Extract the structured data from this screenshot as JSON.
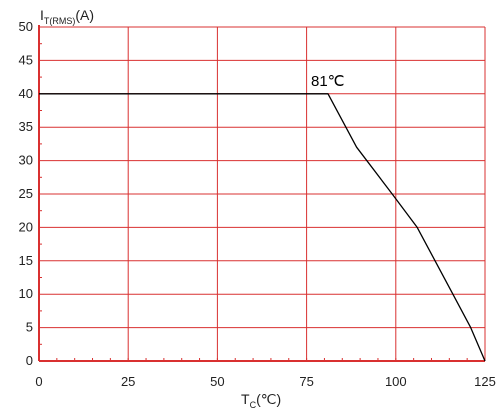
{
  "chart_data": {
    "type": "line",
    "xlabel": {
      "main": "T",
      "sub": "C",
      "suffix": "(℃)"
    },
    "ylabel": {
      "main": "I",
      "sub": "T(RMS)",
      "suffix": "(A)"
    },
    "xlim": [
      0,
      125
    ],
    "ylim": [
      0,
      50
    ],
    "x_ticks": [
      0,
      25,
      50,
      75,
      100,
      125
    ],
    "y_ticks": [
      0,
      5,
      10,
      15,
      20,
      25,
      30,
      35,
      40,
      45,
      50
    ],
    "x_minor_step": 5,
    "grid": true,
    "series": [
      {
        "points": [
          [
            0,
            40
          ],
          [
            81,
            40
          ],
          [
            89,
            32
          ],
          [
            99,
            25
          ],
          [
            106,
            20
          ],
          [
            116,
            10
          ],
          [
            121,
            5
          ],
          [
            125,
            0
          ]
        ]
      }
    ],
    "annotations": [
      {
        "text": "81℃",
        "x": 81,
        "y": 40
      }
    ],
    "colors": {
      "grid": "#d93030",
      "axis": "#d93030",
      "line": "#000000",
      "text": "#222222"
    }
  }
}
